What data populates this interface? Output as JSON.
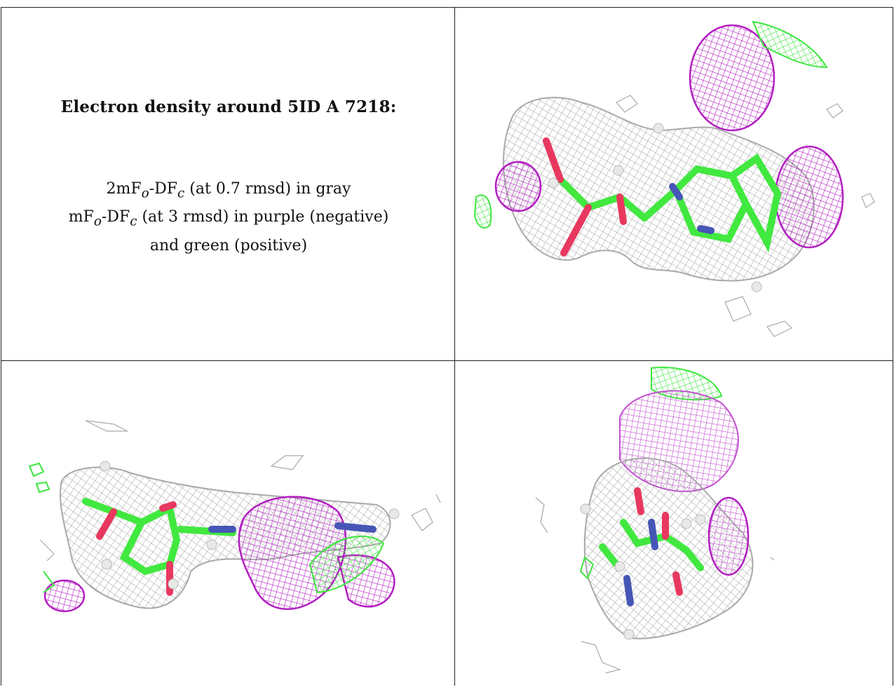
{
  "caption": {
    "title": "Electron density around 5ID A 7218:",
    "line1_prefix": "2mF",
    "line1_sub1": "o",
    "line1_mid": "-DF",
    "line1_sub2": "c",
    "line1_suffix": " (at 0.7 rmsd) in gray",
    "line2_prefix": "mF",
    "line2_sub1": "o",
    "line2_mid": "-DF",
    "line2_sub2": "c",
    "line2_suffix": " (at 3 rmsd) in purple (negative)",
    "line3": "and green (positive)"
  },
  "colors": {
    "gray_mesh": "#a9a9a9",
    "negative_mesh": "#b21fc0",
    "positive_mesh": "#3fe640",
    "carbon": "#41e83f",
    "oxygen": "#e8385f",
    "nitrogen": "#4656b6",
    "hydrogen": "#e8e8e8"
  },
  "panels": [
    {
      "view": "top-right"
    },
    {
      "view": "bottom-left"
    },
    {
      "view": "bottom-right"
    }
  ]
}
